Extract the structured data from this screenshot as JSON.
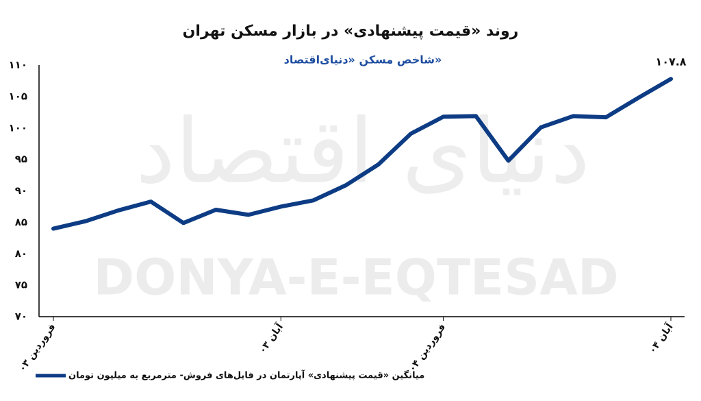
{
  "chart_data": {
    "type": "line",
    "title": "روند «قیمت پیشنهادی» در بازار مسکن تهران",
    "subtitle": "شاخص مسکن «دنیای‌اقتصاد»",
    "watermark": "DONYA-E-EQTESAD",
    "watermark_fa": "دنیای اقتصاد",
    "categories": [
      "فروردین ۰۳",
      null,
      null,
      null,
      null,
      null,
      null,
      "آبان ۰۳",
      null,
      null,
      null,
      null,
      "فروردین ۰۴",
      null,
      null,
      null,
      null,
      null,
      null,
      "آبان ۰۴"
    ],
    "series": [
      {
        "name": "میانگین «قیمت پیشنهادی» آپارتمان در فایل‌های فروش- مترمربع به میلیون تومان",
        "color": "#0d3c84",
        "values": [
          84.0,
          85.2,
          86.9,
          88.3,
          84.9,
          87.0,
          86.2,
          87.5,
          88.5,
          90.9,
          94.2,
          99.1,
          101.8,
          101.9,
          94.8,
          100.1,
          101.9,
          101.7,
          104.8,
          107.8
        ],
        "value_labels": [
          null,
          null,
          null,
          null,
          null,
          null,
          null,
          null,
          null,
          null,
          null,
          null,
          null,
          null,
          null,
          null,
          null,
          null,
          null,
          "۱۰۷.۸"
        ]
      }
    ],
    "ylim": [
      70,
      110
    ],
    "yticks": [
      {
        "value": 70,
        "label": "۷۰"
      },
      {
        "value": 75,
        "label": "۷۵"
      },
      {
        "value": 80,
        "label": "۸۰"
      },
      {
        "value": 85,
        "label": "۸۵"
      },
      {
        "value": 90,
        "label": "۹۰"
      },
      {
        "value": 95,
        "label": "۹۵"
      },
      {
        "value": 100,
        "label": "۱۰۰"
      },
      {
        "value": 105,
        "label": "۱۰۵"
      },
      {
        "value": 110,
        "label": "۱۱۰"
      }
    ],
    "grid": false,
    "legend": "bottom-left"
  }
}
